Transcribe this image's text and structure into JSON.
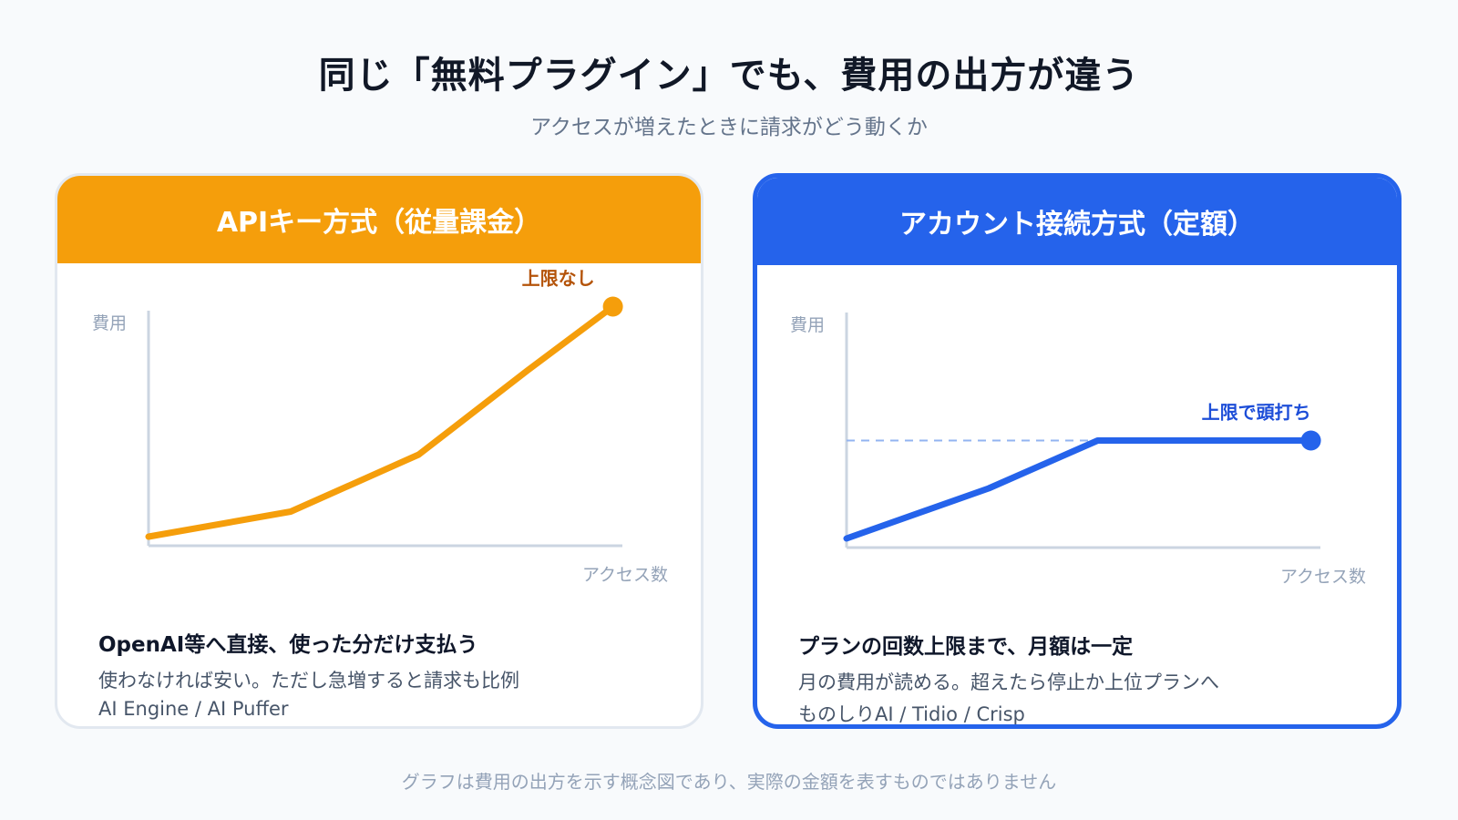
{
  "title": "同じ「無料プラグイン」でも、費用の出方が違う",
  "subtitle": "アクセスが増えたときに請求がどう動くか",
  "footnote": "グラフは費用の出方を示す概念図であり、実際の金額を表すものではありません",
  "colors": {
    "api_accent": "#f59e0b",
    "api_label": "#b45309",
    "account_accent": "#2563eb",
    "account_label": "#1d4ed8",
    "axis": "#cbd5e1",
    "axis_label": "#94a3b8"
  },
  "cards": {
    "api": {
      "header": "APIキー方式（従量課金）",
      "heading": "OpenAI等へ直接、使った分だけ支払う",
      "description": "使わなければ安い。ただし急増すると請求も比例",
      "products": "AI Engine / AI Puffer"
    },
    "account": {
      "header": "アカウント接続方式（定額）",
      "heading": "プランの回数上限まで、月額は一定",
      "description": "月の費用が読める。超えたら停止か上位プランへ",
      "products": "ものしりAI / Tidio / Crisp"
    }
  },
  "chart_data": [
    {
      "type": "line",
      "xlabel": "アクセス数",
      "ylabel": "費用",
      "xlim": [
        0,
        100
      ],
      "ylim": [
        0,
        100
      ],
      "series": [
        {
          "x": [
            0,
            30,
            57,
            80,
            98
          ],
          "y": [
            4,
            15,
            40,
            77,
            105
          ]
        }
      ],
      "annotations": [
        {
          "text": "上限なし",
          "x": 98,
          "y": 105
        }
      ]
    },
    {
      "type": "line",
      "xlabel": "アクセス数",
      "ylabel": "費用",
      "xlim": [
        0,
        100
      ],
      "ylim": [
        0,
        100
      ],
      "series": [
        {
          "x": [
            0,
            30,
            53,
            98
          ],
          "y": [
            4,
            26,
            47,
            47
          ]
        }
      ],
      "cap": 47,
      "annotations": [
        {
          "text": "上限で頭打ち",
          "x": 98,
          "y": 47
        }
      ]
    }
  ]
}
